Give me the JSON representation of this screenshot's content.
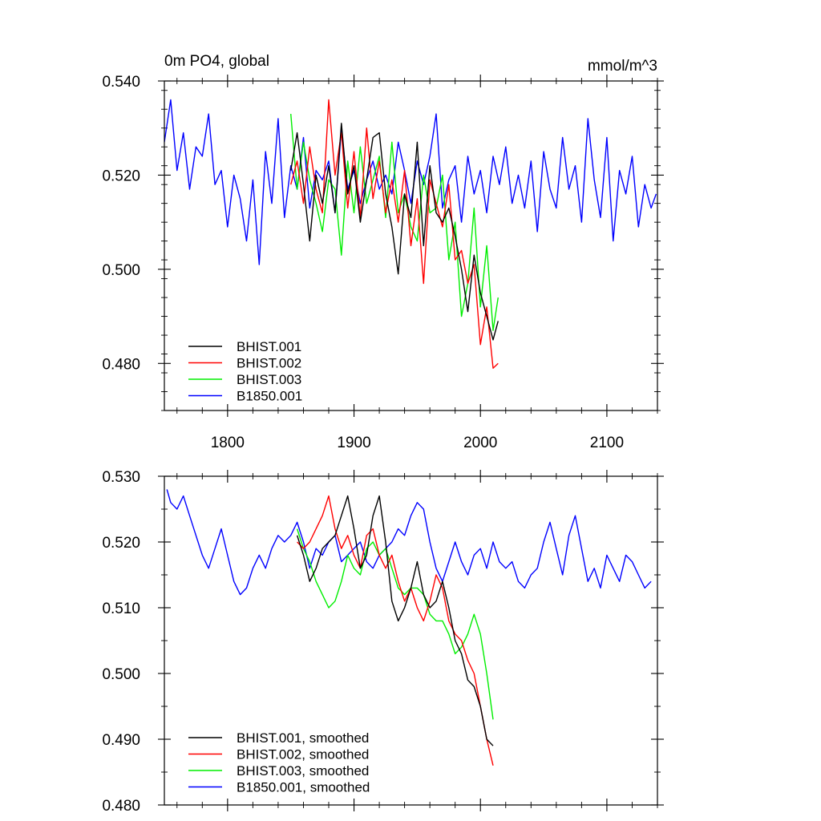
{
  "chart_data": [
    {
      "type": "line",
      "title": "0m PO4, global",
      "units": "mmol/m^3",
      "xlabel": "",
      "ylabel": "",
      "xlim": [
        1750,
        2140
      ],
      "ylim": [
        0.47,
        0.54
      ],
      "xticks": [
        1800,
        1900,
        2000,
        2100
      ],
      "xtick_labels": [
        "1800",
        "1900",
        "2000",
        "2100"
      ],
      "yticks": [
        0.48,
        0.5,
        0.52,
        0.54
      ],
      "ytick_labels": [
        "0.480",
        "0.500",
        "0.520",
        "0.540"
      ],
      "grid": false,
      "legend_position": "bottom-left",
      "series": [
        {
          "name": "BHIST.001",
          "color": "#000000",
          "x": [
            1850,
            1855,
            1860,
            1865,
            1870,
            1875,
            1880,
            1885,
            1890,
            1895,
            1900,
            1905,
            1910,
            1915,
            1920,
            1925,
            1930,
            1935,
            1940,
            1945,
            1950,
            1955,
            1960,
            1965,
            1970,
            1975,
            1980,
            1985,
            1990,
            1995,
            2000,
            2005,
            2010,
            2014
          ],
          "y": [
            0.521,
            0.529,
            0.518,
            0.506,
            0.52,
            0.514,
            0.522,
            0.512,
            0.531,
            0.516,
            0.522,
            0.51,
            0.519,
            0.528,
            0.529,
            0.516,
            0.509,
            0.499,
            0.516,
            0.511,
            0.527,
            0.505,
            0.522,
            0.512,
            0.51,
            0.513,
            0.507,
            0.5,
            0.491,
            0.503,
            0.495,
            0.49,
            0.485,
            0.489
          ]
        },
        {
          "name": "BHIST.002",
          "color": "#ff0000",
          "x": [
            1850,
            1855,
            1860,
            1865,
            1870,
            1875,
            1880,
            1885,
            1890,
            1895,
            1900,
            1905,
            1910,
            1915,
            1920,
            1925,
            1930,
            1935,
            1940,
            1945,
            1950,
            1955,
            1960,
            1965,
            1970,
            1975,
            1980,
            1985,
            1990,
            1995,
            2000,
            2005,
            2010,
            2014
          ],
          "y": [
            0.518,
            0.523,
            0.514,
            0.526,
            0.517,
            0.512,
            0.536,
            0.52,
            0.529,
            0.513,
            0.525,
            0.511,
            0.53,
            0.515,
            0.523,
            0.512,
            0.519,
            0.51,
            0.521,
            0.505,
            0.515,
            0.497,
            0.519,
            0.514,
            0.509,
            0.518,
            0.502,
            0.504,
            0.497,
            0.501,
            0.484,
            0.492,
            0.479,
            0.48
          ]
        },
        {
          "name": "BHIST.003",
          "color": "#00ee00",
          "x": [
            1850,
            1855,
            1860,
            1865,
            1870,
            1875,
            1880,
            1885,
            1890,
            1895,
            1900,
            1905,
            1910,
            1915,
            1920,
            1925,
            1930,
            1935,
            1940,
            1945,
            1950,
            1955,
            1960,
            1965,
            1970,
            1975,
            1980,
            1985,
            1990,
            1995,
            2000,
            2005,
            2010,
            2014
          ],
          "y": [
            0.533,
            0.517,
            0.527,
            0.519,
            0.514,
            0.508,
            0.519,
            0.517,
            0.503,
            0.523,
            0.512,
            0.526,
            0.514,
            0.519,
            0.524,
            0.511,
            0.527,
            0.512,
            0.516,
            0.509,
            0.506,
            0.52,
            0.512,
            0.513,
            0.52,
            0.502,
            0.51,
            0.49,
            0.497,
            0.513,
            0.492,
            0.505,
            0.487,
            0.494
          ]
        },
        {
          "name": "B1850.001",
          "color": "#0000ff",
          "x": [
            1750,
            1755,
            1760,
            1765,
            1770,
            1775,
            1780,
            1785,
            1790,
            1795,
            1800,
            1805,
            1810,
            1815,
            1820,
            1825,
            1830,
            1835,
            1840,
            1845,
            1850,
            1855,
            1860,
            1865,
            1870,
            1875,
            1880,
            1885,
            1890,
            1895,
            1900,
            1905,
            1910,
            1915,
            1920,
            1925,
            1930,
            1935,
            1940,
            1945,
            1950,
            1955,
            1960,
            1965,
            1970,
            1975,
            1980,
            1985,
            1990,
            1995,
            2000,
            2005,
            2010,
            2015,
            2020,
            2025,
            2030,
            2035,
            2040,
            2045,
            2050,
            2055,
            2060,
            2065,
            2070,
            2075,
            2080,
            2085,
            2090,
            2095,
            2100,
            2105,
            2110,
            2115,
            2120,
            2125,
            2130,
            2135,
            2139
          ],
          "y": [
            0.527,
            0.536,
            0.521,
            0.529,
            0.517,
            0.526,
            0.524,
            0.533,
            0.518,
            0.521,
            0.509,
            0.52,
            0.515,
            0.506,
            0.519,
            0.501,
            0.525,
            0.514,
            0.532,
            0.511,
            0.522,
            0.517,
            0.528,
            0.513,
            0.521,
            0.519,
            0.523,
            0.512,
            0.53,
            0.517,
            0.521,
            0.514,
            0.519,
            0.523,
            0.517,
            0.52,
            0.516,
            0.527,
            0.521,
            0.514,
            0.523,
            0.518,
            0.524,
            0.533,
            0.513,
            0.519,
            0.522,
            0.51,
            0.524,
            0.516,
            0.521,
            0.512,
            0.524,
            0.518,
            0.526,
            0.514,
            0.52,
            0.513,
            0.523,
            0.508,
            0.525,
            0.517,
            0.513,
            0.528,
            0.517,
            0.522,
            0.51,
            0.532,
            0.519,
            0.511,
            0.528,
            0.506,
            0.521,
            0.516,
            0.524,
            0.509,
            0.518,
            0.513,
            0.516
          ]
        }
      ]
    },
    {
      "type": "line",
      "title": "",
      "xlabel": "",
      "ylabel": "",
      "xlim": [
        1750,
        2140
      ],
      "ylim": [
        0.48,
        0.53
      ],
      "xticks": [
        1800,
        1900,
        2000,
        2100
      ],
      "xtick_labels": [],
      "yticks": [
        0.48,
        0.49,
        0.5,
        0.51,
        0.52,
        0.53
      ],
      "ytick_labels": [
        "0.480",
        "0.490",
        "0.500",
        "0.510",
        "0.520",
        "0.530"
      ],
      "grid": false,
      "legend_position": "bottom-left",
      "series": [
        {
          "name": "BHIST.001, smoothed",
          "color": "#000000",
          "x": [
            1855,
            1860,
            1865,
            1870,
            1875,
            1880,
            1885,
            1890,
            1895,
            1900,
            1905,
            1910,
            1915,
            1920,
            1925,
            1930,
            1935,
            1940,
            1945,
            1950,
            1955,
            1960,
            1965,
            1970,
            1975,
            1980,
            1985,
            1990,
            1995,
            2000,
            2005,
            2010
          ],
          "y": [
            0.521,
            0.518,
            0.514,
            0.516,
            0.519,
            0.52,
            0.521,
            0.524,
            0.527,
            0.522,
            0.516,
            0.518,
            0.524,
            0.527,
            0.52,
            0.511,
            0.508,
            0.51,
            0.513,
            0.517,
            0.512,
            0.51,
            0.511,
            0.514,
            0.51,
            0.505,
            0.503,
            0.499,
            0.498,
            0.495,
            0.49,
            0.489
          ]
        },
        {
          "name": "BHIST.002, smoothed",
          "color": "#ff0000",
          "x": [
            1855,
            1860,
            1865,
            1870,
            1875,
            1880,
            1885,
            1890,
            1895,
            1900,
            1905,
            1910,
            1915,
            1920,
            1925,
            1930,
            1935,
            1940,
            1945,
            1950,
            1955,
            1960,
            1965,
            1970,
            1975,
            1980,
            1985,
            1990,
            1995,
            2000,
            2005,
            2010
          ],
          "y": [
            0.52,
            0.519,
            0.52,
            0.522,
            0.524,
            0.527,
            0.522,
            0.519,
            0.521,
            0.518,
            0.516,
            0.521,
            0.522,
            0.518,
            0.516,
            0.518,
            0.514,
            0.511,
            0.513,
            0.51,
            0.508,
            0.511,
            0.515,
            0.513,
            0.508,
            0.506,
            0.505,
            0.502,
            0.5,
            0.495,
            0.49,
            0.486
          ]
        },
        {
          "name": "BHIST.003, smoothed",
          "color": "#00ee00",
          "x": [
            1855,
            1860,
            1865,
            1870,
            1875,
            1880,
            1885,
            1890,
            1895,
            1900,
            1905,
            1910,
            1915,
            1920,
            1925,
            1930,
            1935,
            1940,
            1945,
            1950,
            1955,
            1960,
            1965,
            1970,
            1975,
            1980,
            1985,
            1990,
            1995,
            2000,
            2005,
            2010
          ],
          "y": [
            0.522,
            0.519,
            0.517,
            0.514,
            0.512,
            0.51,
            0.511,
            0.514,
            0.518,
            0.516,
            0.515,
            0.519,
            0.52,
            0.518,
            0.519,
            0.516,
            0.513,
            0.512,
            0.513,
            0.513,
            0.512,
            0.509,
            0.508,
            0.508,
            0.506,
            0.503,
            0.504,
            0.506,
            0.509,
            0.506,
            0.5,
            0.493
          ]
        },
        {
          "name": "B1850.001, smoothed",
          "color": "#0000ff",
          "x": [
            1752,
            1755,
            1760,
            1765,
            1770,
            1775,
            1780,
            1785,
            1790,
            1795,
            1800,
            1805,
            1810,
            1815,
            1820,
            1825,
            1830,
            1835,
            1840,
            1845,
            1850,
            1855,
            1860,
            1865,
            1870,
            1875,
            1880,
            1885,
            1890,
            1895,
            1900,
            1905,
            1910,
            1915,
            1920,
            1925,
            1930,
            1935,
            1940,
            1945,
            1950,
            1955,
            1960,
            1965,
            1970,
            1975,
            1980,
            1985,
            1990,
            1995,
            2000,
            2005,
            2010,
            2015,
            2020,
            2025,
            2030,
            2035,
            2040,
            2045,
            2050,
            2055,
            2060,
            2065,
            2070,
            2075,
            2080,
            2085,
            2090,
            2095,
            2100,
            2105,
            2110,
            2115,
            2120,
            2125,
            2130,
            2135
          ],
          "y": [
            0.528,
            0.526,
            0.525,
            0.527,
            0.524,
            0.521,
            0.518,
            0.516,
            0.519,
            0.522,
            0.518,
            0.514,
            0.512,
            0.513,
            0.516,
            0.518,
            0.516,
            0.519,
            0.521,
            0.52,
            0.521,
            0.523,
            0.52,
            0.516,
            0.519,
            0.518,
            0.52,
            0.521,
            0.517,
            0.518,
            0.519,
            0.52,
            0.517,
            0.516,
            0.518,
            0.519,
            0.52,
            0.522,
            0.521,
            0.524,
            0.526,
            0.525,
            0.52,
            0.516,
            0.514,
            0.517,
            0.52,
            0.517,
            0.515,
            0.518,
            0.519,
            0.516,
            0.52,
            0.517,
            0.516,
            0.517,
            0.514,
            0.513,
            0.515,
            0.516,
            0.52,
            0.523,
            0.519,
            0.515,
            0.521,
            0.524,
            0.519,
            0.514,
            0.516,
            0.513,
            0.518,
            0.516,
            0.514,
            0.518,
            0.517,
            0.515,
            0.513,
            0.514
          ]
        }
      ]
    }
  ]
}
